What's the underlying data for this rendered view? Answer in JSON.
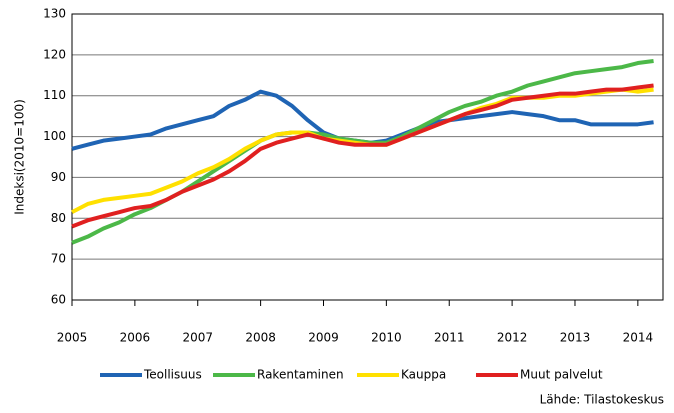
{
  "chart_data": {
    "type": "line",
    "y_label": "Indeksi(2010=100)",
    "source": "Lähde: Tilastokeskus",
    "x": [
      2005,
      2005.25,
      2005.5,
      2005.75,
      2006,
      2006.25,
      2006.5,
      2006.75,
      2007,
      2007.25,
      2007.5,
      2007.75,
      2008,
      2008.25,
      2008.5,
      2008.75,
      2009,
      2009.25,
      2009.5,
      2009.75,
      2010,
      2010.25,
      2010.5,
      2010.75,
      2011,
      2011.25,
      2011.5,
      2011.75,
      2012,
      2012.25,
      2012.5,
      2012.75,
      2013,
      2013.25,
      2013.5,
      2013.75,
      2014,
      2014.25
    ],
    "series": [
      {
        "name": "Teollisuus",
        "color": "#1f64b4",
        "values": [
          97,
          98,
          99,
          99.5,
          100,
          100.5,
          102,
          103,
          104,
          105,
          107.5,
          109,
          111,
          110,
          107.5,
          104,
          101,
          99.5,
          99,
          98.5,
          99,
          100.5,
          102,
          103.5,
          104,
          104.5,
          105,
          105.5,
          106,
          105.5,
          105,
          104,
          104,
          103,
          103,
          103,
          103,
          103.5
        ]
      },
      {
        "name": "Rakentaminen",
        "color": "#4cb848",
        "values": [
          74,
          75.5,
          77.5,
          79,
          81,
          82.5,
          84.5,
          86.5,
          89,
          91.5,
          94,
          96.5,
          99,
          100.5,
          101,
          101,
          100.5,
          99.5,
          99,
          98.5,
          98.5,
          100,
          102,
          104,
          106,
          107.5,
          108.5,
          110,
          111,
          112.5,
          113.5,
          114.5,
          115.5,
          116,
          116.5,
          117,
          118,
          118.5
        ]
      },
      {
        "name": "Kauppa",
        "color": "#ffe000",
        "values": [
          81.5,
          83.5,
          84.5,
          85,
          85.5,
          86,
          87.5,
          89,
          91,
          92.5,
          94.5,
          97,
          99,
          100.5,
          101,
          101,
          99.5,
          99,
          98.5,
          98,
          98,
          99.5,
          101,
          102.5,
          104,
          105.5,
          107,
          108,
          109.5,
          109.5,
          109.5,
          110,
          110,
          110.5,
          111,
          111.5,
          111,
          111.5
        ]
      },
      {
        "name": "Muut palvelut",
        "color": "#e02020",
        "values": [
          78,
          79.5,
          80.5,
          81.5,
          82.5,
          83,
          84.5,
          86.5,
          88,
          89.5,
          91.5,
          94,
          97,
          98.5,
          99.5,
          100.5,
          99.5,
          98.5,
          98,
          98,
          98,
          99.5,
          101,
          102.5,
          104,
          105.5,
          106.5,
          107.5,
          109,
          109.5,
          110,
          110.5,
          110.5,
          111,
          111.5,
          111.5,
          112,
          112.5
        ]
      }
    ],
    "xlim": [
      2005,
      2014.4
    ],
    "xticks": [
      2005,
      2006,
      2007,
      2008,
      2009,
      2010,
      2011,
      2012,
      2013,
      2014
    ],
    "ylim": [
      60,
      130
    ],
    "yticks": [
      60,
      70,
      80,
      90,
      100,
      110,
      120,
      130
    ],
    "grid": true
  }
}
